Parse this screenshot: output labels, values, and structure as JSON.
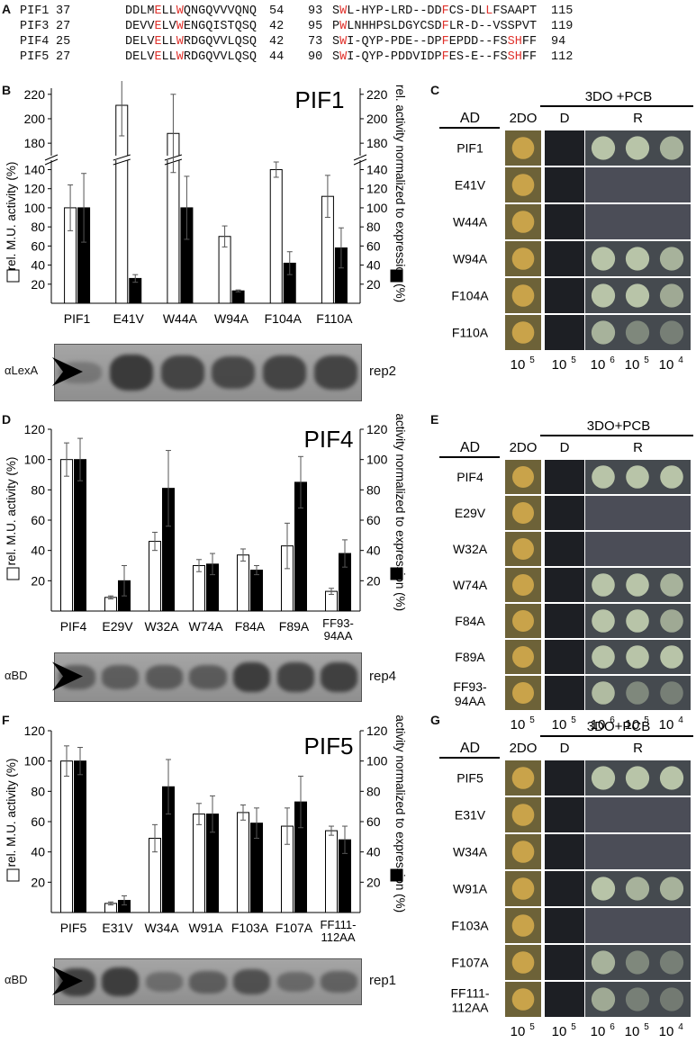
{
  "panel_letters": {
    "A": "A",
    "B": "B",
    "C": "C",
    "D": "D",
    "E": "E",
    "F": "F",
    "G": "G"
  },
  "alignment": {
    "rows": [
      {
        "name": "PIF1",
        "start1": "37",
        "seq1": "DDLMELLWQNGQVVVQNQ",
        "end1": "54",
        "start2": "93",
        "seq2": "SWL-HYP-LRD--DDFCS-DLLFSAAPT",
        "end2": "115"
      },
      {
        "name": "PIF3",
        "start1": "27",
        "seq1": "DEVVELVWENGQISTQSQ",
        "end1": "42",
        "start2": "95",
        "seq2": "PWLNHHPSLDGYCSDFLR-D--VSSPVT",
        "end2": "119"
      },
      {
        "name": "PIF4",
        "start1": "25",
        "seq1": "DELVELLWRDGQVVLQSQ",
        "end1": "42",
        "start2": "73",
        "seq2": "SWI-QYP-PDE--DPFEPDD--FSSHFF",
        "end2": "94"
      },
      {
        "name": "PIF5",
        "start1": "27",
        "seq1": "DELVELLWRDGQVVLQSQ",
        "end1": "44",
        "start2": "90",
        "seq2": "SWI-QYP-PDDVIDPFES-E--FSSHFF",
        "end2": "112"
      }
    ]
  },
  "colors": {
    "highlight": "#e0322c",
    "bar_open": "#ffffff",
    "bar_filled": "#000000",
    "blot_bg": "#9a9a9a",
    "plate_dark": "#1b1d22",
    "plate_light": "#4a4c55"
  },
  "chart_data": [
    {
      "type": "bar",
      "title": "PIF1",
      "categories": [
        "PIF1",
        "E41V",
        "W44A",
        "W94A",
        "F104A",
        "F110A"
      ],
      "series": [
        {
          "name": "rel. M.U. activity (%)",
          "values": [
            100,
            211,
            188,
            70,
            140,
            112
          ],
          "errors": [
            24,
            25,
            32,
            11,
            8,
            22
          ]
        },
        {
          "name": "rel. activity normalized to expression (%)",
          "values": [
            100,
            26,
            100,
            13,
            42,
            58
          ],
          "errors": [
            36,
            4,
            33,
            1,
            12,
            21
          ]
        }
      ],
      "ylabel_left": "rel. M.U. activity (%)",
      "ylabel_right": "rel. activity normalized to expression (%)",
      "yticks_lower": [
        "20",
        "40",
        "60",
        "80",
        "100",
        "120",
        "140"
      ],
      "yticks_upper": [
        "180",
        "200",
        "220"
      ],
      "axis_break": true
    },
    {
      "type": "bar",
      "title": "PIF4",
      "categories": [
        "PIF4",
        "E29V",
        "W32A",
        "W74A",
        "F84A",
        "F89A",
        "FF93-94AA"
      ],
      "series": [
        {
          "name": "rel. M.U. activity (%)",
          "values": [
            100,
            9,
            46,
            30,
            37,
            43,
            13
          ],
          "errors": [
            11,
            1,
            6,
            4,
            4,
            15,
            2
          ]
        },
        {
          "name": "rel. activity normalized to expression (%)",
          "values": [
            100,
            20,
            81,
            31,
            27,
            85,
            38
          ],
          "errors": [
            14,
            10,
            25,
            7,
            3,
            17,
            9
          ]
        }
      ],
      "ylabel_left": "rel. M.U. activity (%)",
      "ylabel_right": "rel. activity normalized to expression (%)",
      "yticks": [
        "20",
        "40",
        "60",
        "80",
        "100",
        "120"
      ],
      "ylim": [
        0,
        120
      ]
    },
    {
      "type": "bar",
      "title": "PIF5",
      "categories": [
        "PIF5",
        "E31V",
        "W34A",
        "W91A",
        "F103A",
        "F107A",
        "FF111-112AA"
      ],
      "series": [
        {
          "name": "rel. M.U. activity (%)",
          "values": [
            100,
            6,
            49,
            65,
            66,
            57,
            54
          ],
          "errors": [
            10,
            1,
            9,
            7,
            5,
            12,
            3
          ]
        },
        {
          "name": "rel. activity normalized to expression (%)",
          "values": [
            100,
            8,
            83,
            65,
            59,
            73,
            48
          ],
          "errors": [
            9,
            3,
            18,
            12,
            10,
            17,
            9
          ]
        }
      ],
      "ylabel_left": "rel. M.U. activity (%)",
      "ylabel_right": "rel. activity normalized to expression (%)",
      "yticks": [
        "20",
        "40",
        "60",
        "80",
        "100",
        "120"
      ],
      "ylim": [
        0,
        120
      ]
    }
  ],
  "blots": [
    {
      "antibody": "αLexA",
      "rep": "rep2",
      "bands": [
        0.15,
        1,
        0.85,
        0.8,
        0.85,
        0.85
      ]
    },
    {
      "antibody": "αBD",
      "rep": "rep4",
      "bands": [
        0.5,
        0.5,
        0.55,
        0.55,
        0.95,
        0.85,
        0.9
      ]
    },
    {
      "antibody": "αBD",
      "rep": "rep1",
      "bands": [
        0.9,
        0.95,
        0.3,
        0.5,
        0.7,
        0.35,
        0.45
      ]
    }
  ],
  "spot_assays": [
    {
      "header": "3DO +PCB",
      "ad": "AD",
      "col_2do": "2DO",
      "col_d": "D",
      "col_r": "R",
      "rows": [
        "PIF1",
        "E41V",
        "W44A",
        "W94A",
        "F104A",
        "F110A"
      ],
      "growth": [
        [
          1,
          1,
          0.8
        ],
        [
          0,
          0,
          0
        ],
        [
          0,
          0,
          0
        ],
        [
          1,
          1,
          0.8
        ],
        [
          1,
          1,
          0.7
        ],
        [
          0.8,
          0.3,
          0.2
        ]
      ],
      "dilutions": [
        "10",
        "10",
        "10",
        "10",
        "10"
      ],
      "exponents": [
        "5",
        "5",
        "6",
        "5",
        "4"
      ]
    },
    {
      "header": "3DO+PCB",
      "ad": "AD",
      "col_2do": "2DO",
      "col_d": "D",
      "col_r": "R",
      "rows": [
        "PIF4",
        "E29V",
        "W32A",
        "W74A",
        "F84A",
        "F89A",
        "FF93-94AA"
      ],
      "growth": [
        [
          1,
          1,
          1
        ],
        [
          0,
          0,
          0
        ],
        [
          0,
          0,
          0
        ],
        [
          1,
          1,
          0.8
        ],
        [
          1,
          1,
          0.7
        ],
        [
          1,
          1,
          1
        ],
        [
          0.9,
          0.3,
          0.2
        ]
      ],
      "dilutions": [
        "10",
        "10",
        "10",
        "10",
        "10"
      ],
      "exponents": [
        "5",
        "5",
        "6",
        "5",
        "4"
      ]
    },
    {
      "header": "3DO+PCB",
      "ad": "AD",
      "col_2do": "2DO",
      "col_d": "D",
      "col_r": "R",
      "rows": [
        "PIF5",
        "E31V",
        "W34A",
        "W91A",
        "F103A",
        "F107A",
        "FF111-112AA"
      ],
      "growth": [
        [
          1,
          1,
          1
        ],
        [
          0,
          0,
          0
        ],
        [
          0,
          0,
          0
        ],
        [
          1,
          0.8,
          0.8
        ],
        [
          0,
          0,
          0
        ],
        [
          0.8,
          0.3,
          0.2
        ],
        [
          0.7,
          0.2,
          0.15
        ]
      ],
      "dilutions": [
        "10",
        "10",
        "10",
        "10",
        "10"
      ],
      "exponents": [
        "5",
        "5",
        "6",
        "5",
        "4"
      ]
    }
  ]
}
